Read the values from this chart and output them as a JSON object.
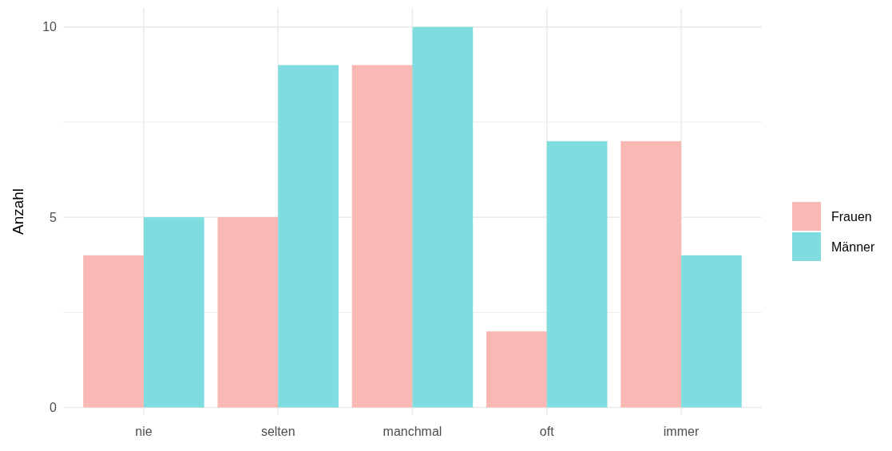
{
  "chart_data": {
    "type": "bar",
    "ylabel": "Anzahl",
    "categories": [
      "nie",
      "selten",
      "manchmal",
      "oft",
      "immer"
    ],
    "series": [
      {
        "name": "Frauen",
        "color": "#fab8b4",
        "values": [
          4,
          5,
          9,
          2,
          7
        ]
      },
      {
        "name": "Männer",
        "color": "#7fdde0",
        "values": [
          5,
          9,
          10,
          7,
          4
        ]
      }
    ],
    "ylim": [
      -0.2,
      10.5
    ],
    "yticks": [
      0,
      {
        "value": 2.5,
        "label": null
      },
      5,
      {
        "value": 7.5,
        "label": null
      },
      10
    ],
    "grid": true,
    "legend": "right"
  }
}
